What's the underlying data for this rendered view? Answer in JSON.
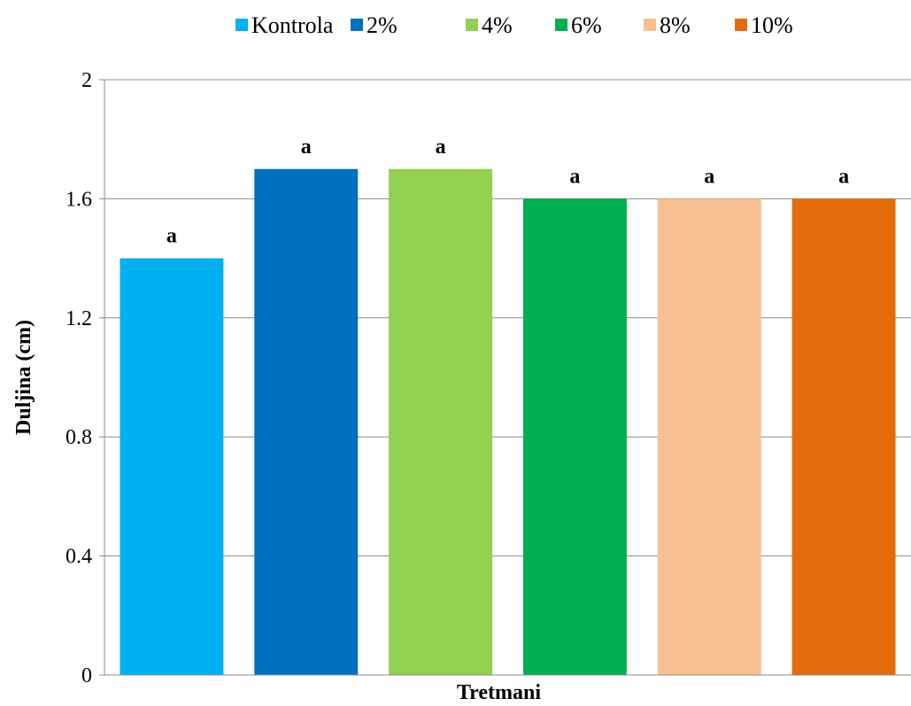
{
  "chart_data": {
    "type": "bar",
    "xlabel": "Tretmani",
    "ylabel": "Duljina (cm)",
    "ylim": [
      0,
      2
    ],
    "yticks": [
      0,
      0.4,
      0.8,
      1.2,
      1.6,
      2
    ],
    "ytick_labels": [
      "0",
      "0.4",
      "0.8",
      "1.2",
      "1.6",
      "2"
    ],
    "grid": true,
    "legend_position": "top",
    "series": [
      {
        "name": "Kontrola",
        "value": 1.4,
        "label": "a",
        "color": "#00B0F0"
      },
      {
        "name": "2%",
        "value": 1.7,
        "label": "a",
        "color": "#0070C0"
      },
      {
        "name": "4%",
        "value": 1.7,
        "label": "a",
        "color": "#92D050"
      },
      {
        "name": "6%",
        "value": 1.6,
        "label": "a",
        "color": "#00B050"
      },
      {
        "name": "8%",
        "value": 1.6,
        "label": "a",
        "color": "#F8C090"
      },
      {
        "name": "10%",
        "value": 1.6,
        "label": "a",
        "color": "#E36C0A"
      }
    ]
  }
}
